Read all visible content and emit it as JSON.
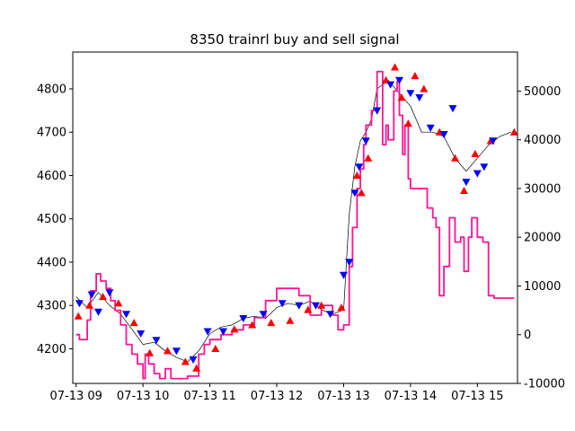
{
  "chart_data": {
    "type": "line",
    "title": "8350 trainrl buy and sell signal",
    "xlabel": "",
    "ylabel": "",
    "grid": false,
    "x_ticks": [
      "07-13 09",
      "07-13 10",
      "07-13 11",
      "07-13 12",
      "07-13 13",
      "07-13 14",
      "07-13 15"
    ],
    "x_range": [
      "07-13 08:57",
      "07-13 15:36"
    ],
    "ylim_left": [
      4120,
      4885
    ],
    "ylim_right": [
      -10000,
      58000
    ],
    "y_ticks_left": [
      4200,
      4300,
      4400,
      4500,
      4600,
      4700,
      4800
    ],
    "y_ticks_right": [
      -10000,
      0,
      10000,
      20000,
      30000,
      40000,
      50000
    ],
    "colors": {
      "price": "#000000",
      "position": "#ff1493",
      "buy": "#ff0000",
      "sell": "#0000ff"
    },
    "series": [
      {
        "axis": "left",
        "style": "line",
        "x": [
          "09:00",
          "09:10",
          "09:20",
          "09:30",
          "09:40",
          "09:50",
          "10:00",
          "10:10",
          "10:20",
          "10:30",
          "10:40",
          "10:50",
          "11:00",
          "11:10",
          "11:20",
          "11:30",
          "11:40",
          "11:50",
          "12:00",
          "12:10",
          "12:20",
          "12:30",
          "12:40",
          "12:50",
          "13:00",
          "13:05",
          "13:10",
          "13:15",
          "13:20",
          "13:25",
          "13:30",
          "13:40",
          "13:50",
          "14:00",
          "14:10",
          "14:20",
          "14:30",
          "14:40",
          "14:50",
          "15:00",
          "15:10",
          "15:20",
          "15:30"
        ],
        "y": [
          4320,
          4295,
          4330,
          4300,
          4280,
          4245,
          4210,
          4215,
          4195,
          4180,
          4170,
          4195,
          4235,
          4250,
          4255,
          4270,
          4275,
          4270,
          4295,
          4305,
          4300,
          4310,
          4290,
          4280,
          4290,
          4510,
          4620,
          4680,
          4700,
          4730,
          4800,
          4820,
          4790,
          4760,
          4700,
          4700,
          4690,
          4640,
          4610,
          4640,
          4670,
          4690,
          4700
        ]
      },
      {
        "axis": "right",
        "style": "step",
        "x": [
          "09:00",
          "09:03",
          "09:06",
          "09:10",
          "09:13",
          "09:18",
          "09:22",
          "09:27",
          "09:31",
          "09:35",
          "09:40",
          "09:45",
          "09:50",
          "09:55",
          "10:00",
          "10:02",
          "10:05",
          "10:10",
          "10:15",
          "10:20",
          "10:25",
          "10:30",
          "10:40",
          "10:50",
          "10:55",
          "11:00",
          "11:05",
          "11:10",
          "11:15",
          "11:20",
          "11:30",
          "11:40",
          "11:50",
          "12:00",
          "12:10",
          "12:20",
          "12:30",
          "12:40",
          "12:50",
          "12:55",
          "13:00",
          "13:05",
          "13:08",
          "13:12",
          "13:15",
          "13:18",
          "13:20",
          "13:25",
          "13:30",
          "13:35",
          "13:38",
          "13:40",
          "13:45",
          "13:48",
          "13:50",
          "13:53",
          "13:55",
          "13:58",
          "14:00",
          "14:05",
          "14:10",
          "14:15",
          "14:20",
          "14:23",
          "14:26",
          "14:30",
          "14:35",
          "14:40",
          "14:45",
          "14:48",
          "14:52",
          "14:55",
          "15:00",
          "15:05",
          "15:10",
          "15:15",
          "15:20",
          "15:25",
          "15:33"
        ],
        "y": [
          0,
          -1000,
          -1000,
          3000,
          9000,
          12500,
          11000,
          9500,
          7000,
          5000,
          2000,
          -2000,
          -4000,
          -6000,
          -9000,
          -4000,
          -6000,
          -8000,
          -9000,
          -7000,
          -9000,
          -9000,
          -8500,
          -4000,
          -2000,
          -1000,
          -1000,
          0,
          0,
          1000,
          2000,
          3500,
          7000,
          9500,
          9500,
          8000,
          4000,
          6000,
          4000,
          1000,
          2000,
          14000,
          22000,
          30000,
          34000,
          39000,
          43000,
          46000,
          54000,
          39000,
          43000,
          40000,
          50000,
          52000,
          45000,
          37000,
          43000,
          32000,
          30000,
          30000,
          30000,
          26000,
          24000,
          22000,
          8000,
          14000,
          24000,
          19000,
          20000,
          13000,
          20000,
          24000,
          20000,
          19000,
          8000,
          7500,
          7500,
          7500,
          7500
        ]
      },
      {
        "axis": "left",
        "style": "markers",
        "name": "",
        "marker": "triangle-up",
        "x": [
          "09:02",
          "09:12",
          "09:24",
          "09:38",
          "09:52",
          "10:06",
          "10:22",
          "10:38",
          "10:48",
          "11:05",
          "11:22",
          "11:38",
          "11:55",
          "12:12",
          "12:28",
          "12:40",
          "12:58",
          "13:12",
          "13:16",
          "13:22",
          "13:38",
          "13:46",
          "13:52",
          "13:58",
          "14:04",
          "14:12",
          "14:26",
          "14:40",
          "14:48",
          "14:58",
          "15:12",
          "15:33"
        ],
        "y": [
          4275,
          4300,
          4320,
          4305,
          4260,
          4190,
          4195,
          4170,
          4155,
          4200,
          4245,
          4255,
          4260,
          4265,
          4290,
          4300,
          4295,
          4600,
          4560,
          4640,
          4820,
          4850,
          4780,
          4720,
          4830,
          4800,
          4700,
          4640,
          4565,
          4650,
          4680,
          4700
        ]
      },
      {
        "axis": "left",
        "style": "markers",
        "name": "",
        "marker": "triangle-down",
        "x": [
          "09:03",
          "09:14",
          "09:20",
          "09:30",
          "09:45",
          "09:58",
          "10:12",
          "10:30",
          "10:45",
          "10:58",
          "11:12",
          "11:30",
          "11:48",
          "12:05",
          "12:20",
          "12:35",
          "12:48",
          "13:00",
          "13:05",
          "13:10",
          "13:14",
          "13:20",
          "13:30",
          "13:42",
          "13:50",
          "14:00",
          "14:08",
          "14:18",
          "14:30",
          "14:38",
          "14:50",
          "15:00",
          "15:06",
          "15:14"
        ],
        "y": [
          4305,
          4325,
          4285,
          4330,
          4280,
          4235,
          4220,
          4195,
          4175,
          4240,
          4240,
          4270,
          4280,
          4305,
          4300,
          4300,
          4280,
          4370,
          4400,
          4560,
          4620,
          4680,
          4750,
          4810,
          4820,
          4790,
          4780,
          4710,
          4695,
          4755,
          4585,
          4605,
          4620,
          4680
        ]
      }
    ]
  }
}
